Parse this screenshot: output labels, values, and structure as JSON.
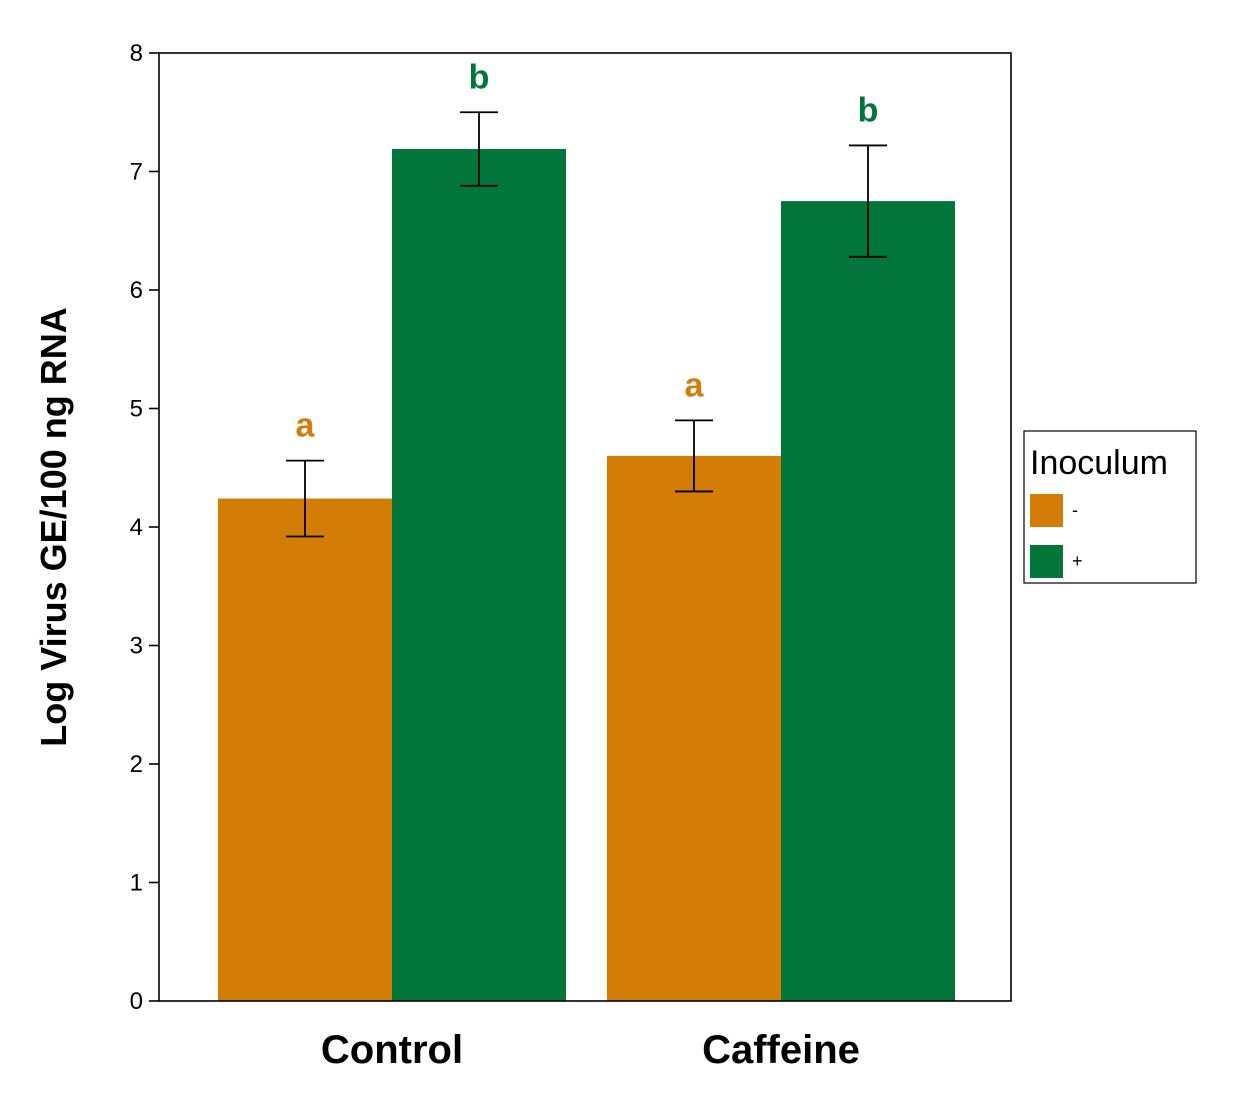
{
  "chart_data": {
    "type": "bar",
    "title": "",
    "xlabel": "",
    "ylabel": "Log Virus GE/100 ng RNA",
    "ylim": [
      0,
      8
    ],
    "yticks": [
      0,
      1,
      2,
      3,
      4,
      5,
      6,
      7,
      8
    ],
    "grid": false,
    "categories": [
      "Control",
      "Caffeine"
    ],
    "series": [
      {
        "name": "-",
        "color": "#d37d07",
        "values": [
          4.24,
          4.6
        ],
        "error": [
          0.32,
          0.3
        ],
        "significance": [
          "a",
          "a"
        ]
      },
      {
        "name": "+",
        "color": "#02763a",
        "values": [
          7.19,
          6.75
        ],
        "error": [
          0.31,
          0.47
        ],
        "significance": [
          "b",
          "b"
        ]
      }
    ],
    "legend": {
      "title": "Inoculum",
      "placement": "right"
    }
  }
}
